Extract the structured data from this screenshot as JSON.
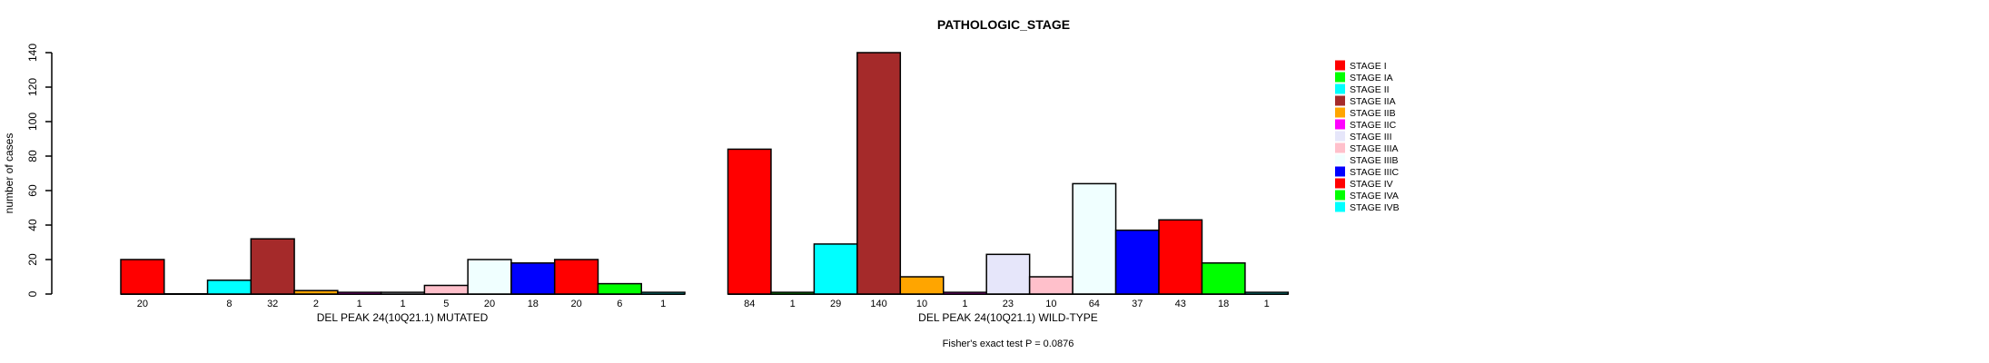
{
  "title": "PATHOLOGIC_STAGE",
  "chart_data": {
    "type": "bar",
    "title": "PATHOLOGIC_STAGE",
    "ylabel": "number of cases",
    "xlabel": "",
    "ylim": [
      0,
      140
    ],
    "yticks": [
      0,
      20,
      40,
      60,
      80,
      100,
      120,
      140
    ],
    "grid": false,
    "legend_position": "right",
    "bar_border_color": "#000000",
    "categories": [
      "STAGE I",
      "STAGE IA",
      "STAGE II",
      "STAGE IIA",
      "STAGE IIB",
      "STAGE IIC",
      "STAGE III",
      "STAGE IIIA",
      "STAGE IIIB",
      "STAGE IIIC",
      "STAGE IV",
      "STAGE IVA",
      "STAGE IVB"
    ],
    "palette": [
      "#FF0000",
      "#00FF00",
      "#00FFFF",
      "#A52A2A",
      "#FFA500",
      "#FF00FF",
      "#E6E6FA",
      "#FFC0CB",
      "#F0FFFF",
      "#0000FF",
      "#FF0000",
      "#00FF00",
      "#00FFFF"
    ],
    "series": [
      {
        "name": "DEL PEAK 24(10Q21.1) MUTATED",
        "values": [
          20,
          0,
          8,
          32,
          2,
          1,
          1,
          5,
          20,
          18,
          20,
          6,
          1
        ]
      },
      {
        "name": "DEL PEAK 24(10Q21.1) WILD-TYPE",
        "values": [
          84,
          1,
          29,
          140,
          10,
          1,
          23,
          10,
          64,
          37,
          43,
          18,
          1
        ]
      }
    ],
    "bar_count_labels_note": "each bar's value printed under its bar; zero values show no label",
    "annotation": "Fisher's exact test P = 0.0876"
  }
}
